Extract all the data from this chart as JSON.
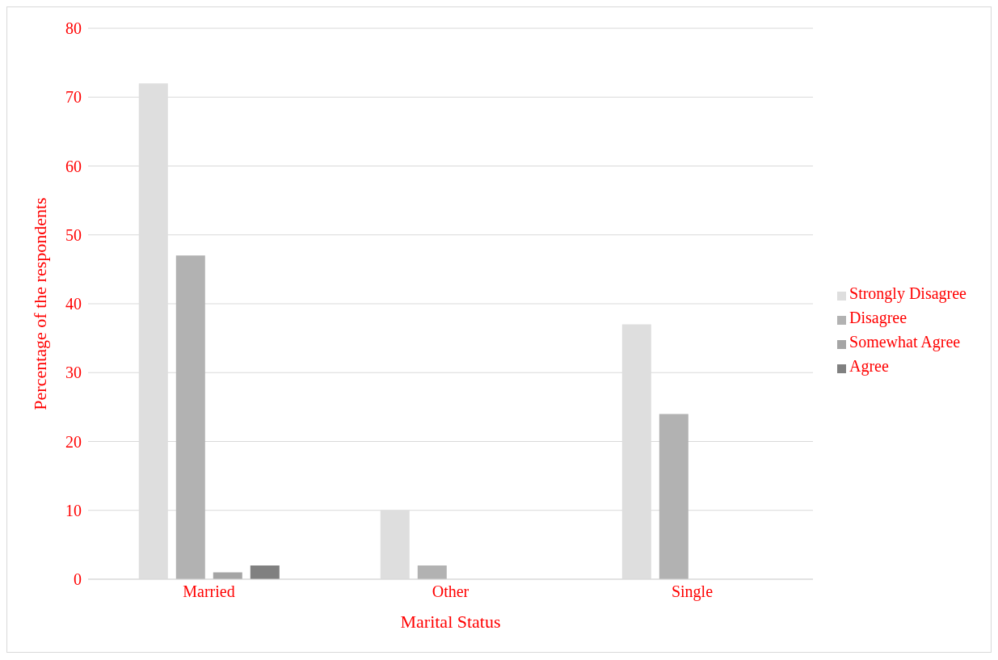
{
  "chart_data": {
    "type": "bar",
    "xlabel": "Marital Status",
    "ylabel": "Percentage of the respondents",
    "categories": [
      "Married",
      "Other",
      "Single"
    ],
    "series": [
      {
        "name": "Strongly Disagree",
        "color": "#dedede",
        "values": [
          72,
          10,
          37
        ]
      },
      {
        "name": "Disagree",
        "color": "#b2b2b2",
        "values": [
          47,
          2,
          24
        ]
      },
      {
        "name": "Somewhat Agree",
        "color": "#a5a5a5",
        "values": [
          1,
          0,
          0
        ]
      },
      {
        "name": "Agree",
        "color": "#808080",
        "values": [
          2,
          0,
          0
        ]
      }
    ],
    "ylim": [
      0,
      80
    ],
    "yticks": [
      0,
      10,
      20,
      30,
      40,
      50,
      60,
      70,
      80
    ],
    "grid": "y",
    "legend": "right"
  }
}
